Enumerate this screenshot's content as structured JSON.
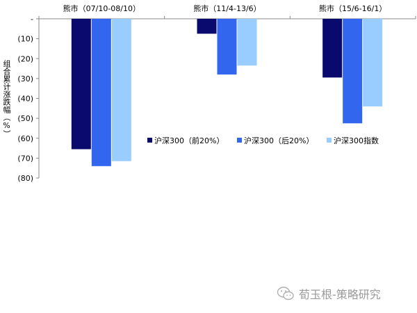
{
  "chart_data": {
    "type": "bar",
    "categories": [
      "熊市（07/10-08/10）",
      "熊市（11/4-13/6）",
      "熊市（15/6-16/1）"
    ],
    "series": [
      {
        "name": "沪深300（前20%）",
        "color": "#0a0a6e",
        "values": [
          -65.5,
          -7.5,
          -29.5
        ]
      },
      {
        "name": "沪深300（后20%）",
        "color": "#3366ee",
        "values": [
          -74,
          -28,
          -52.5
        ]
      },
      {
        "name": "沪深300指数",
        "color": "#99ccff",
        "values": [
          -71.5,
          -23.5,
          -44
        ]
      }
    ],
    "y_ticks": [
      "-",
      "(10)",
      "(20)",
      "(30)",
      "(40)",
      "(50)",
      "(60)",
      "(70)",
      "(80)"
    ],
    "ylim": [
      -80,
      0
    ],
    "ylabel": "组合累计涨跌幅（%）",
    "legend_position": "center-right"
  },
  "watermark": {
    "text": "荀玉根-策略研究",
    "icon": "wechat-icon"
  }
}
